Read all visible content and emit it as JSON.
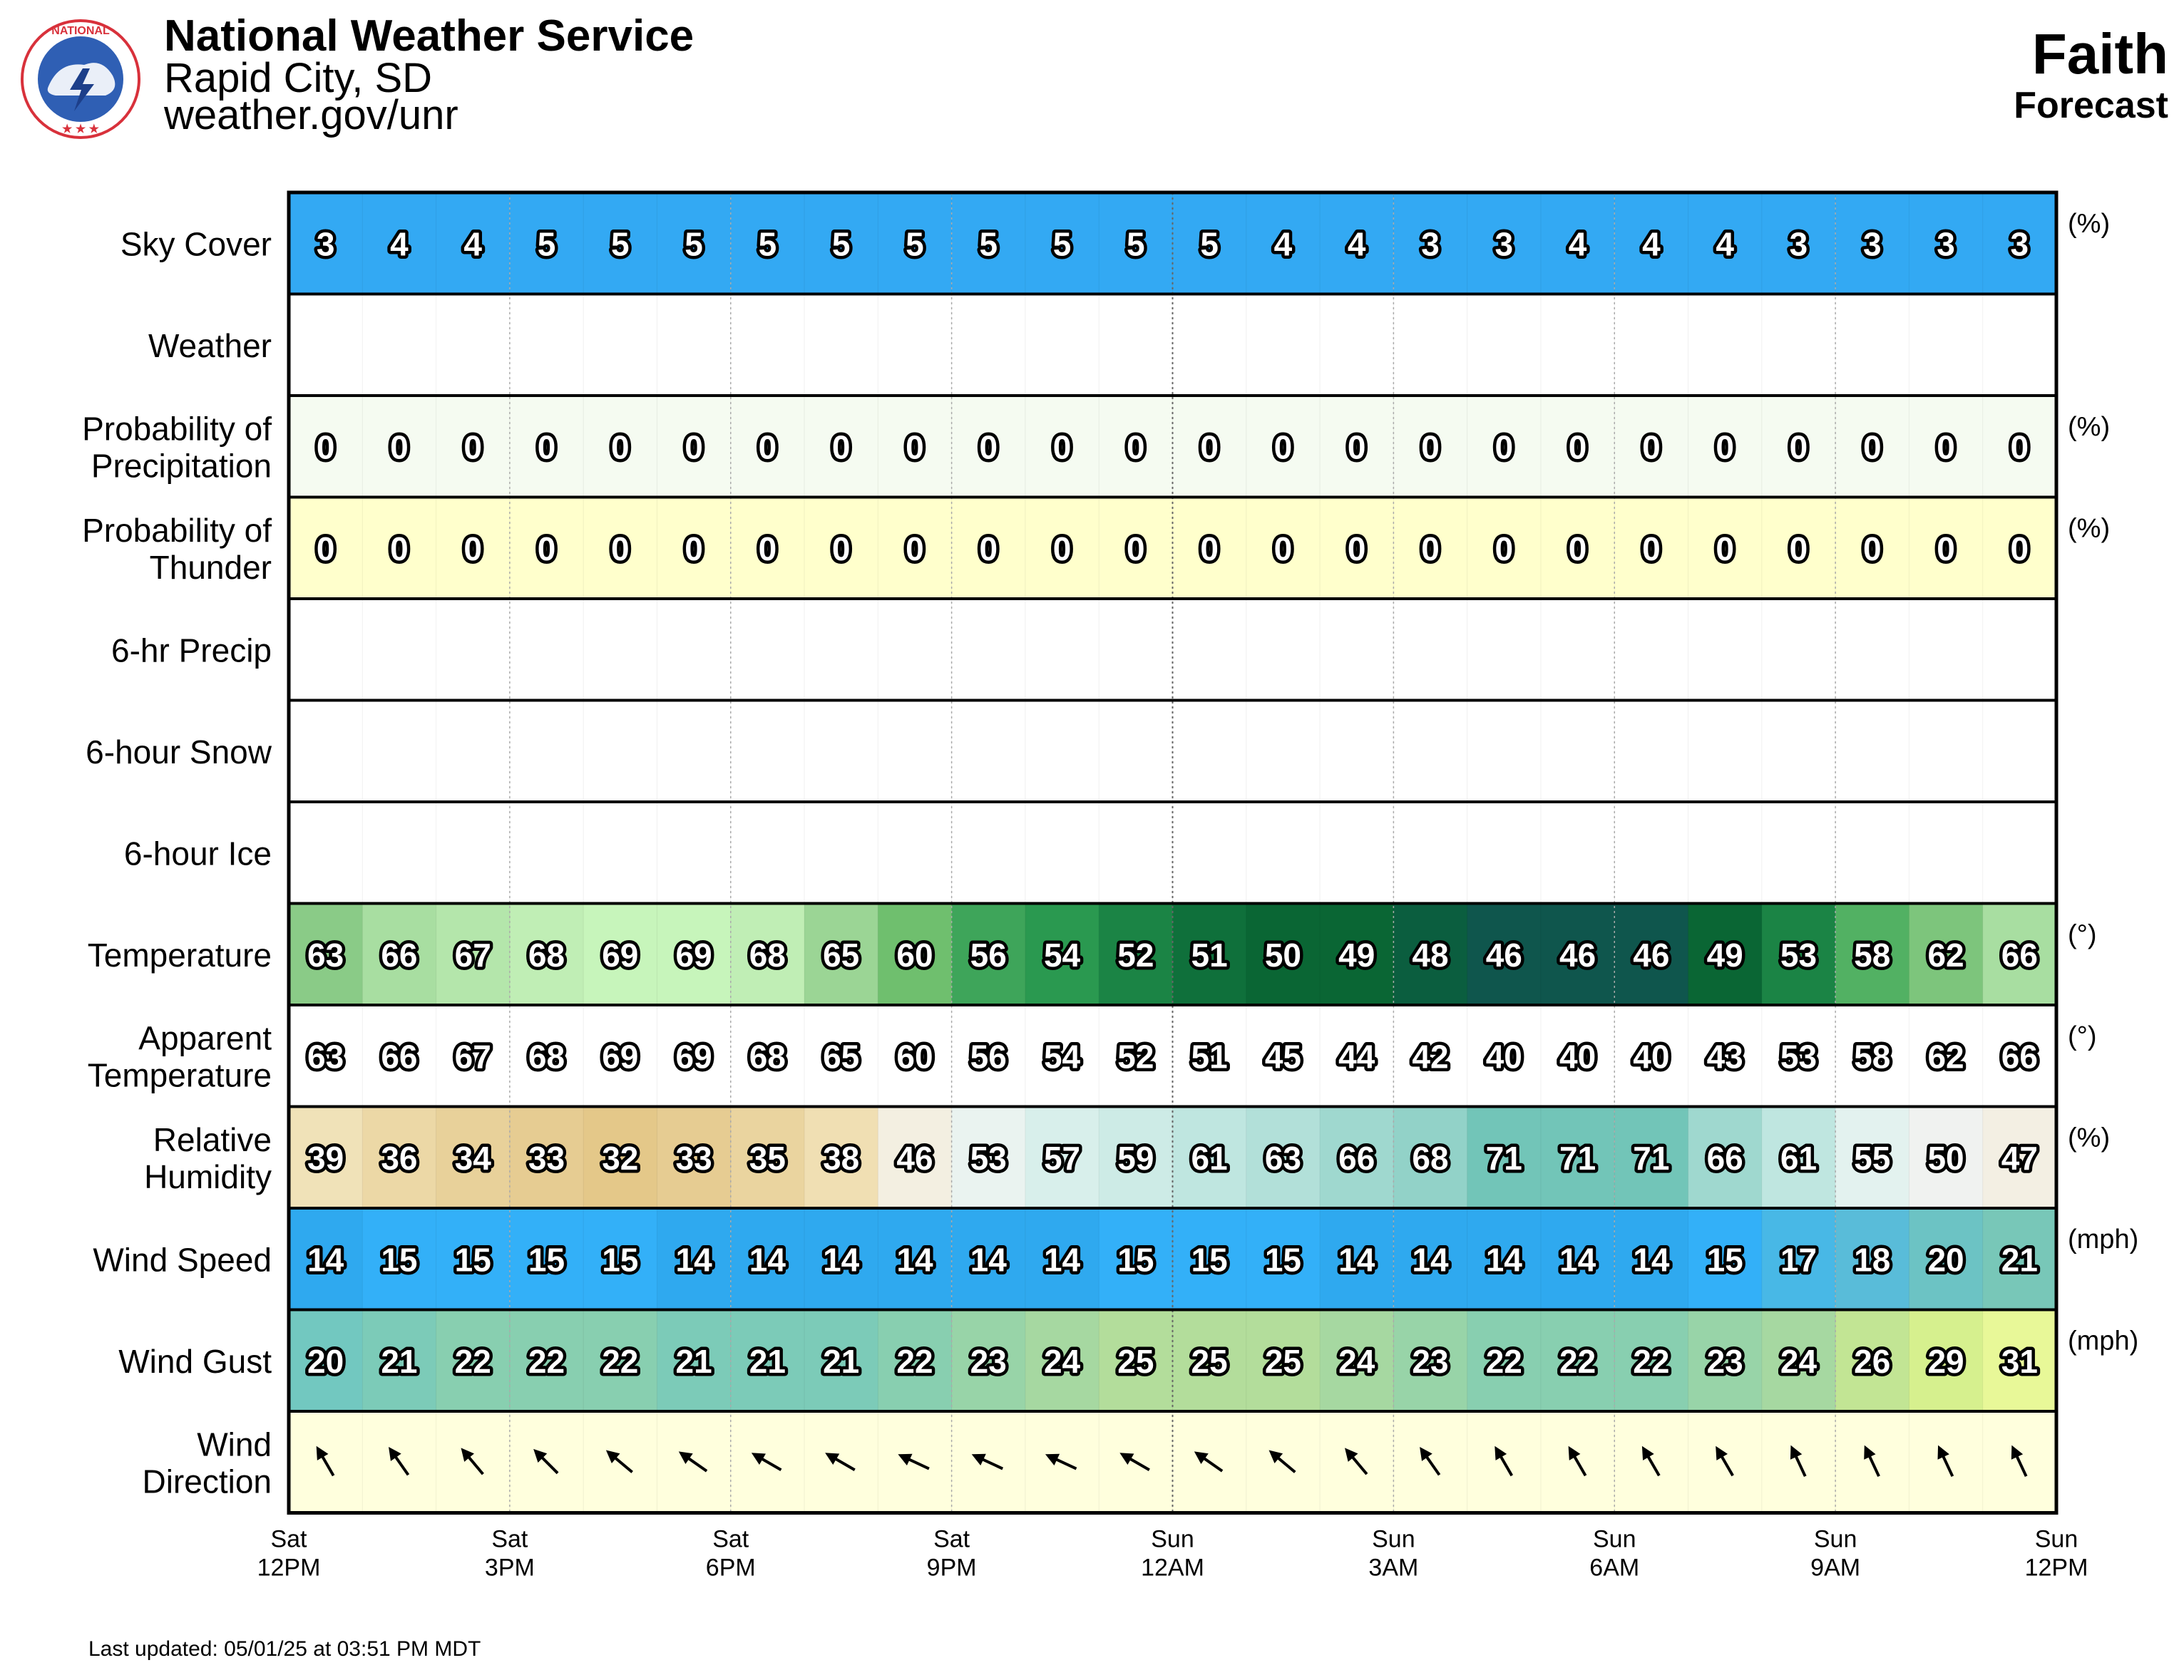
{
  "header": {
    "org": "National Weather Service",
    "office": "Rapid City, SD",
    "url": "weather.gov/unr",
    "location": "Faith",
    "forecast_label": "Forecast",
    "logo_icon": "nws-logo-icon"
  },
  "footer": {
    "last_updated": "Last updated: 05/01/25 at 03:51 PM MDT"
  },
  "chart_data": {
    "type": "table",
    "time_axis": [
      {
        "day": "Sat",
        "time": "12PM"
      },
      {
        "day": "Sat",
        "time": "3PM"
      },
      {
        "day": "Sat",
        "time": "6PM"
      },
      {
        "day": "Sat",
        "time": "9PM"
      },
      {
        "day": "Sun",
        "time": "12AM"
      },
      {
        "day": "Sun",
        "time": "3AM"
      },
      {
        "day": "Sun",
        "time": "6AM"
      },
      {
        "day": "Sun",
        "time": "9AM"
      },
      {
        "day": "Sun",
        "time": "12PM"
      }
    ],
    "rows": [
      {
        "key": "sky_cover",
        "label": [
          "Sky Cover"
        ],
        "unit": "(%)",
        "values": [
          3,
          4,
          4,
          5,
          5,
          5,
          5,
          5,
          5,
          5,
          5,
          5,
          5,
          4,
          4,
          3,
          3,
          4,
          4,
          4,
          3,
          3,
          3,
          3
        ],
        "colors": [
          "#33a9f3",
          "#33a9f3",
          "#33a9f3",
          "#33a9f3",
          "#33a9f3",
          "#33a9f3",
          "#33a9f3",
          "#33a9f3",
          "#33a9f3",
          "#33a9f3",
          "#33a9f3",
          "#33a9f3",
          "#33a9f3",
          "#33a9f3",
          "#33a9f3",
          "#33a9f3",
          "#33a9f3",
          "#33a9f3",
          "#33a9f3",
          "#33a9f3",
          "#33a9f3",
          "#33a9f3",
          "#33a9f3",
          "#33a9f3"
        ]
      },
      {
        "key": "weather",
        "label": [
          "Weather"
        ],
        "unit": "",
        "values": [],
        "colors": []
      },
      {
        "key": "pop",
        "label": [
          "Probability of",
          "Precipitation"
        ],
        "unit": "(%)",
        "values": [
          0,
          0,
          0,
          0,
          0,
          0,
          0,
          0,
          0,
          0,
          0,
          0,
          0,
          0,
          0,
          0,
          0,
          0,
          0,
          0,
          0,
          0,
          0,
          0
        ],
        "colors": [
          "#f5fbf1",
          "#f5fbf1",
          "#f5fbf1",
          "#f5fbf1",
          "#f5fbf1",
          "#f5fbf1",
          "#f5fbf1",
          "#f5fbf1",
          "#f5fbf1",
          "#f5fbf1",
          "#f5fbf1",
          "#f5fbf1",
          "#f5fbf1",
          "#f5fbf1",
          "#f5fbf1",
          "#f5fbf1",
          "#f5fbf1",
          "#f5fbf1",
          "#f5fbf1",
          "#f5fbf1",
          "#f5fbf1",
          "#f5fbf1",
          "#f5fbf1",
          "#f5fbf1"
        ]
      },
      {
        "key": "thunder",
        "label": [
          "Probability of",
          "Thunder"
        ],
        "unit": "(%)",
        "values": [
          0,
          0,
          0,
          0,
          0,
          0,
          0,
          0,
          0,
          0,
          0,
          0,
          0,
          0,
          0,
          0,
          0,
          0,
          0,
          0,
          0,
          0,
          0,
          0
        ],
        "colors": [
          "#ffffcc",
          "#ffffcc",
          "#ffffcc",
          "#ffffcc",
          "#ffffcc",
          "#ffffcc",
          "#ffffcc",
          "#ffffcc",
          "#ffffcc",
          "#ffffcc",
          "#ffffcc",
          "#ffffcc",
          "#ffffcc",
          "#ffffcc",
          "#ffffcc",
          "#ffffcc",
          "#ffffcc",
          "#ffffcc",
          "#ffffcc",
          "#ffffcc",
          "#ffffcc",
          "#ffffcc",
          "#ffffcc",
          "#ffffcc"
        ]
      },
      {
        "key": "precip6",
        "label": [
          "6-hr Precip"
        ],
        "unit": "",
        "values": [],
        "colors": []
      },
      {
        "key": "snow6",
        "label": [
          "6-hour Snow"
        ],
        "unit": "",
        "values": [],
        "colors": []
      },
      {
        "key": "ice6",
        "label": [
          "6-hour Ice"
        ],
        "unit": "",
        "values": [],
        "colors": []
      },
      {
        "key": "temperature",
        "label": [
          "Temperature"
        ],
        "unit": "(°)",
        "values": [
          63,
          66,
          67,
          68,
          69,
          69,
          68,
          65,
          60,
          56,
          54,
          52,
          51,
          50,
          49,
          48,
          46,
          46,
          46,
          49,
          53,
          58,
          62,
          66
        ],
        "colors": [
          "#8acb87",
          "#a8dea1",
          "#b4e6ab",
          "#c0eeb5",
          "#c7f5bb",
          "#c7f5bb",
          "#c0eeb5",
          "#9bd595",
          "#6fbf6e",
          "#3ea55a",
          "#2a9950",
          "#1b8445",
          "#0f703b",
          "#0a6634",
          "#0a6634",
          "#0b5e3f",
          "#0f564d",
          "#0f564d",
          "#0f564d",
          "#0a6634",
          "#1b8445",
          "#52b163",
          "#7dc57c",
          "#a8dea1"
        ]
      },
      {
        "key": "apparent",
        "label": [
          "Apparent",
          "Temperature"
        ],
        "unit": "(°)",
        "values": [
          63,
          66,
          67,
          68,
          69,
          69,
          68,
          65,
          60,
          56,
          54,
          52,
          51,
          45,
          44,
          42,
          40,
          40,
          40,
          43,
          53,
          58,
          62,
          66
        ],
        "colors": [
          "#ffffff",
          "#ffffff",
          "#ffffff",
          "#ffffff",
          "#ffffff",
          "#ffffff",
          "#ffffff",
          "#ffffff",
          "#ffffff",
          "#ffffff",
          "#ffffff",
          "#ffffff",
          "#ffffff",
          "#ffffff",
          "#ffffff",
          "#ffffff",
          "#ffffff",
          "#ffffff",
          "#ffffff",
          "#ffffff",
          "#ffffff",
          "#ffffff",
          "#ffffff",
          "#ffffff"
        ]
      },
      {
        "key": "humidity",
        "label": [
          "Relative",
          "Humidity"
        ],
        "unit": "(%)",
        "values": [
          39,
          36,
          34,
          33,
          32,
          33,
          35,
          38,
          46,
          53,
          57,
          59,
          61,
          63,
          66,
          68,
          71,
          71,
          71,
          66,
          61,
          55,
          50,
          47
        ],
        "colors": [
          "#f0e2b8",
          "#ecd8a6",
          "#e8d19a",
          "#e6cc92",
          "#e4c889",
          "#e6cc92",
          "#ead49f",
          "#f0dfb3",
          "#f3efe1",
          "#eaf3f0",
          "#d8efeb",
          "#cdebe6",
          "#bfe6e0",
          "#b2e0d9",
          "#9fd8cf",
          "#92d2c8",
          "#72c5b8",
          "#72c5b8",
          "#72c5b8",
          "#9fd8cf",
          "#bfe6e0",
          "#e3f2ef",
          "#f0f2f0",
          "#f3efe3"
        ]
      },
      {
        "key": "wind_speed",
        "label": [
          "Wind Speed"
        ],
        "unit": "(mph)",
        "values": [
          14,
          15,
          15,
          15,
          15,
          14,
          14,
          14,
          14,
          14,
          14,
          15,
          15,
          15,
          14,
          14,
          14,
          14,
          14,
          15,
          17,
          18,
          20,
          21
        ],
        "colors": [
          "#2fa9ef",
          "#33b0f8",
          "#33b0f8",
          "#33b0f8",
          "#33b0f8",
          "#2fa9ef",
          "#2fa9ef",
          "#2fa9ef",
          "#2fa9ef",
          "#2fa9ef",
          "#2fa9ef",
          "#33b0f8",
          "#33b0f8",
          "#33b0f8",
          "#2fa9ef",
          "#2fa9ef",
          "#2fa9ef",
          "#2fa9ef",
          "#2fa9ef",
          "#33b0f8",
          "#48b8e6",
          "#59bcd9",
          "#6cc3c4",
          "#78c7b8"
        ]
      },
      {
        "key": "wind_gust",
        "label": [
          "Wind Gust"
        ],
        "unit": "(mph)",
        "values": [
          20,
          21,
          22,
          22,
          22,
          21,
          21,
          21,
          22,
          23,
          24,
          25,
          25,
          25,
          24,
          23,
          22,
          22,
          22,
          23,
          24,
          26,
          29,
          31
        ],
        "colors": [
          "#72c8c0",
          "#7ccbb8",
          "#88cfb0",
          "#88cfb0",
          "#88cfb0",
          "#7ccbb8",
          "#7ccbb8",
          "#7ccbb8",
          "#88cfb0",
          "#98d4a8",
          "#a6d8a1",
          "#b3dd9b",
          "#b3dd9b",
          "#b3dd9b",
          "#a6d8a1",
          "#98d4a8",
          "#88cfb0",
          "#88cfb0",
          "#88cfb0",
          "#98d4a8",
          "#a6d8a1",
          "#c2e594",
          "#d6f08e",
          "#e8f898"
        ]
      },
      {
        "key": "wind_dir",
        "label": [
          "Wind",
          "Direction"
        ],
        "unit": "",
        "icon": "wind-arrow-icon",
        "directions_deg": [
          150,
          145,
          140,
          135,
          130,
          125,
          120,
          120,
          115,
          115,
          115,
          120,
          125,
          130,
          140,
          145,
          150,
          150,
          150,
          150,
          155,
          155,
          155,
          155
        ],
        "colors": [
          "#ffffdd",
          "#ffffdd",
          "#ffffdd",
          "#ffffdd",
          "#ffffdd",
          "#ffffdd",
          "#ffffdd",
          "#ffffdd",
          "#ffffdd",
          "#ffffdd",
          "#ffffdd",
          "#ffffdd",
          "#ffffdd",
          "#ffffdd",
          "#ffffdd",
          "#ffffdd",
          "#ffffdd",
          "#ffffdd",
          "#ffffdd",
          "#ffffdd",
          "#ffffdd",
          "#ffffdd",
          "#ffffdd",
          "#ffffdd"
        ]
      }
    ]
  }
}
